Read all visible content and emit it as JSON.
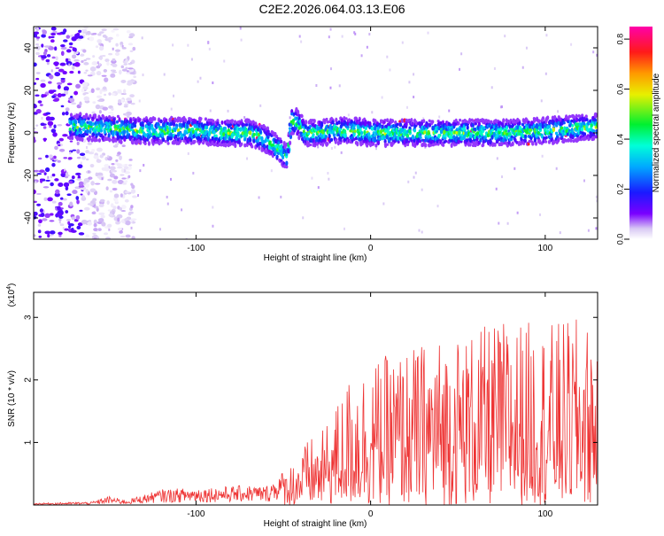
{
  "title": "C2E2.2026.064.03.13.E06",
  "chart_data": [
    {
      "type": "heatmap",
      "xlabel": "Height of straight line (km)",
      "ylabel": "Frequency (Hz)",
      "xlim": [
        -193,
        130
      ],
      "ylim": [
        -50,
        50
      ],
      "xticks": [
        -100,
        0,
        100
      ],
      "xtick_labels": [
        "-100",
        "0",
        "100"
      ],
      "yticks": [
        -40,
        -20,
        0,
        20,
        40
      ],
      "ytick_labels": [
        "-40",
        "-20",
        "0",
        "20",
        "40"
      ],
      "ridge": {
        "x": [
          -170,
          -150,
          -130,
          -115,
          -100,
          -85,
          -70,
          -60,
          -52,
          -48,
          -45,
          -42,
          -38,
          -30,
          -20,
          -10,
          0,
          20,
          40,
          60,
          80,
          100,
          115,
          130
        ],
        "y": [
          3,
          2,
          1,
          1,
          1,
          0,
          0,
          -3,
          -8,
          -12,
          6,
          5,
          0,
          0,
          1,
          1,
          0,
          0,
          0,
          0,
          0,
          1,
          2,
          3
        ]
      },
      "noise_region": [
        -193,
        -165
      ],
      "colorbar": {
        "label": "Normalized spectral amplitude",
        "range": [
          0.0,
          0.85
        ],
        "ticks": [
          0.0,
          0.2,
          0.4,
          0.6,
          0.8
        ],
        "tick_labels": [
          "0.0",
          "0.2",
          "0.4",
          "0.6",
          "0.8"
        ]
      }
    },
    {
      "type": "line",
      "xlabel": "Height of straight line (km)",
      "ylabel": "SNR (10 * v/v)",
      "y_multiplier_label": "(x10",
      "y_multiplier_exp": "4",
      "xlim": [
        -193,
        130
      ],
      "ylim": [
        0,
        3.4
      ],
      "xticks": [
        -100,
        0,
        100
      ],
      "xtick_labels": [
        "-100",
        "0",
        "100"
      ],
      "yticks": [
        1,
        2,
        3
      ],
      "ytick_labels": [
        "1",
        "2",
        "3"
      ],
      "color": "#ee3333",
      "envelope": {
        "x": [
          -193,
          -160,
          -150,
          -140,
          -120,
          -100,
          -80,
          -70,
          -60,
          -50,
          -40,
          -35,
          -30,
          -20,
          -10,
          0,
          20,
          40,
          60,
          80,
          100,
          120,
          130
        ],
        "y": [
          0.03,
          0.05,
          0.14,
          0.08,
          0.25,
          0.28,
          0.3,
          0.32,
          0.3,
          0.55,
          0.85,
          1.1,
          1.05,
          1.6,
          2.2,
          2.3,
          2.5,
          2.7,
          2.8,
          3.0,
          2.9,
          3.0,
          2.8
        ]
      }
    }
  ]
}
